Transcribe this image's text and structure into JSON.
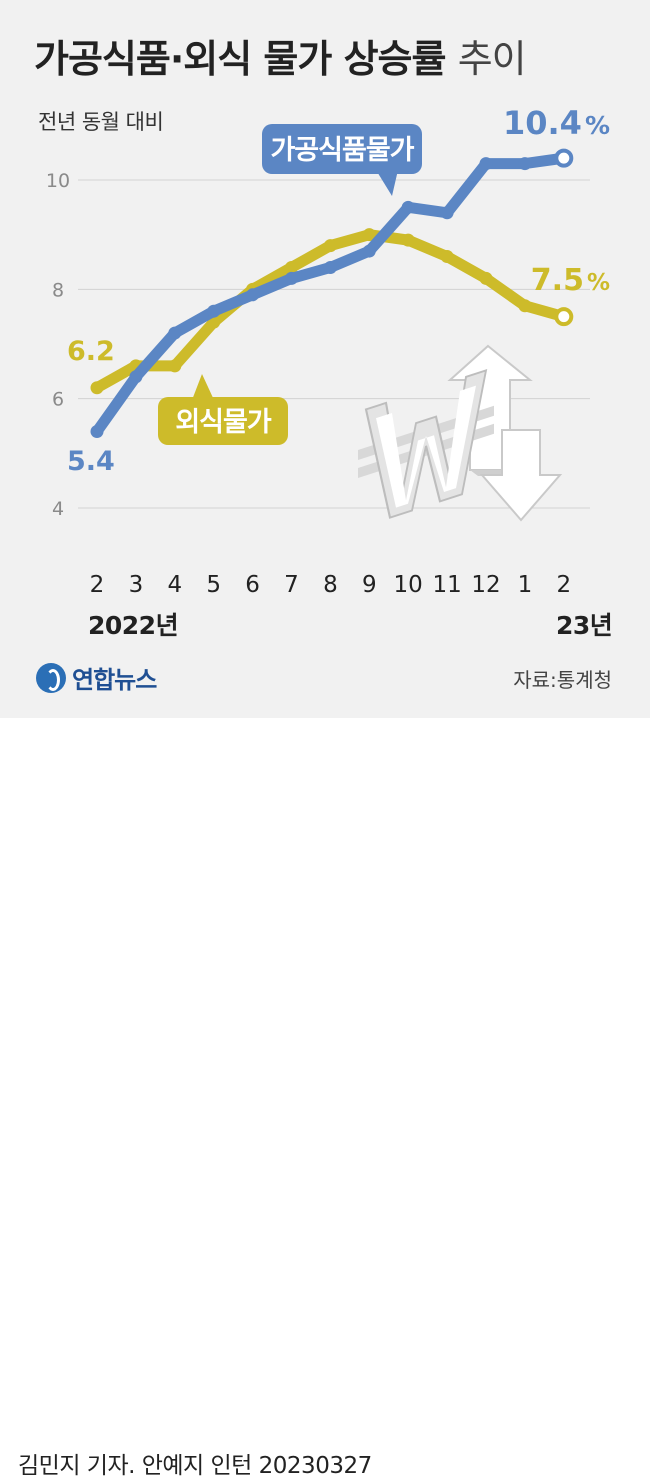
{
  "header": {
    "title_bold": "가공식품·외식 물가 상승률",
    "title_light": "추이",
    "subtitle": "전년 동월 대비"
  },
  "chart_data": {
    "type": "line",
    "title": "가공식품·외식 물가 상승률 추이",
    "ylabel": "전년 동월 대비",
    "unit": "%",
    "ylim": [
      4,
      10
    ],
    "y_ticks": [
      4,
      6,
      8,
      10
    ],
    "grid": true,
    "categories": [
      "2",
      "3",
      "4",
      "5",
      "6",
      "7",
      "8",
      "9",
      "10",
      "11",
      "12",
      "1",
      "2"
    ],
    "year_labels": [
      "2022년",
      "23년"
    ],
    "series": [
      {
        "name": "가공식품물가",
        "color": "#5b86c4",
        "values": [
          5.4,
          6.4,
          7.2,
          7.6,
          7.9,
          8.2,
          8.4,
          8.7,
          9.5,
          9.4,
          10.3,
          10.3,
          10.4
        ],
        "first_label": "5.4",
        "last_label": "10.4"
      },
      {
        "name": "외식물가",
        "color": "#cdbb2a",
        "values": [
          6.2,
          6.6,
          6.6,
          7.4,
          8.0,
          8.4,
          8.8,
          9.0,
          8.9,
          8.6,
          8.2,
          7.7,
          7.5
        ],
        "first_label": "6.2",
        "last_label": "7.5"
      }
    ]
  },
  "footer": {
    "source": "자료:통계청",
    "logo_text": "연합뉴스",
    "credit": "김민지 기자. 안예지 인턴 20230327"
  },
  "colors": {
    "background": "#f1f1f1",
    "processed_food": "#5b86c4",
    "dining_out": "#cdbb2a",
    "grid": "#d2d2d2"
  },
  "icons": [
    "won-up-down-arrows-icon"
  ]
}
